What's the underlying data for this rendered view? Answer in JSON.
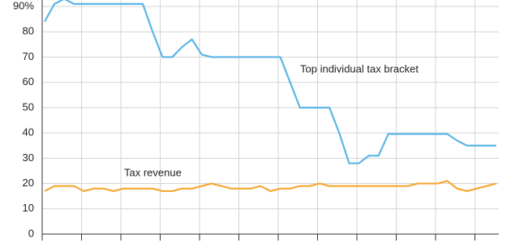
{
  "chart_data": {
    "type": "line",
    "categories": [
      null,
      null,
      null,
      null,
      null,
      null,
      null,
      null,
      null,
      null,
      null,
      null,
      null,
      null,
      null,
      null,
      null,
      null,
      null,
      null,
      null,
      null,
      null,
      null,
      null,
      null,
      null,
      null,
      null,
      null,
      null,
      null,
      null,
      null,
      null,
      null,
      null,
      null,
      null,
      null,
      null,
      null,
      null,
      null,
      null,
      null,
      null
    ],
    "series": [
      {
        "name": "Top individual tax bracket",
        "color": "#5cb6e6",
        "values": [
          84,
          91,
          93,
          91,
          91,
          91,
          91,
          91,
          91,
          91,
          91,
          80,
          70,
          70,
          74,
          77,
          71,
          70,
          70,
          70,
          70,
          70,
          70,
          70,
          70,
          60,
          50,
          50,
          50,
          50,
          40,
          28,
          28,
          31,
          31,
          39.6,
          39.6,
          39.6,
          39.6,
          39.6,
          39.6,
          39.6,
          37,
          35,
          35,
          35,
          35
        ]
      },
      {
        "name": "Tax revenue",
        "color": "#f5a833",
        "values": [
          17,
          19,
          19,
          19,
          17,
          18,
          18,
          17,
          18,
          18,
          18,
          18,
          17,
          17,
          18,
          18,
          19,
          20,
          19,
          18,
          18,
          18,
          19,
          17,
          18,
          18,
          19,
          19,
          20,
          19,
          19,
          19,
          19,
          19,
          19,
          19,
          19,
          19,
          20,
          20,
          20,
          21,
          18,
          17,
          18,
          19,
          20
        ]
      }
    ],
    "ylim": [
      0,
      90
    ],
    "yticks": [
      0,
      10,
      20,
      30,
      40,
      50,
      60,
      70,
      80,
      {
        "value": 90,
        "label": "90%"
      }
    ],
    "grid": true
  }
}
